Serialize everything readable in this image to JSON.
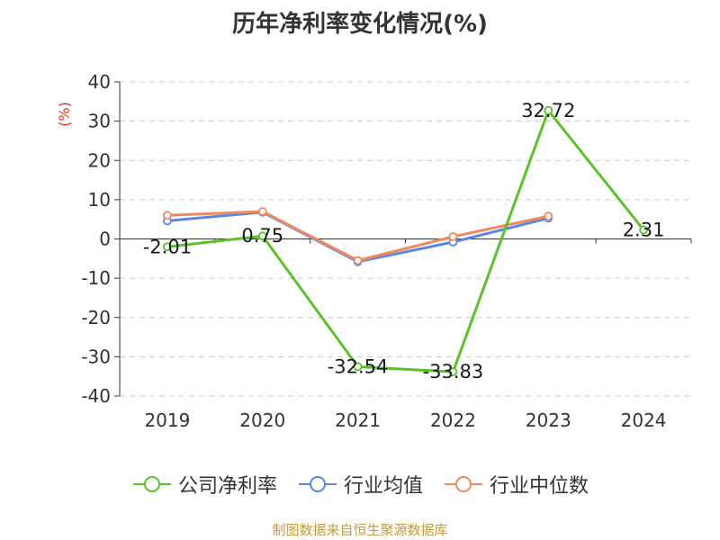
{
  "title": "历年净利率变化情况(%)",
  "source": "制图数据来自恒生聚源数据库",
  "chart_data": {
    "type": "line",
    "title": "历年净利率变化情况(%)",
    "ylabel": "(%)",
    "xlabel": "",
    "categories": [
      "2019",
      "2020",
      "2021",
      "2022",
      "2023",
      "2024"
    ],
    "ylim": [
      -40,
      40
    ],
    "yticks": [
      40,
      30,
      20,
      10,
      0,
      -10,
      -20,
      -30,
      -40
    ],
    "grid": true,
    "legend_position": "bottom",
    "series": [
      {
        "name": "公司净利率",
        "color": "#5cc12b",
        "values": [
          -2.01,
          0.75,
          -32.54,
          -33.83,
          32.72,
          2.31
        ],
        "labels": [
          "-2.01",
          "0.75",
          "-32.54",
          "-33.83",
          "32.72",
          "2.31"
        ]
      },
      {
        "name": "行业均值",
        "color": "#5b86e5",
        "values": [
          4.6,
          6.8,
          -5.8,
          -0.8,
          5.3,
          null
        ]
      },
      {
        "name": "行业中位数",
        "color": "#f08a5d",
        "values": [
          6.0,
          7.0,
          -5.5,
          0.6,
          5.8,
          null
        ]
      }
    ]
  }
}
